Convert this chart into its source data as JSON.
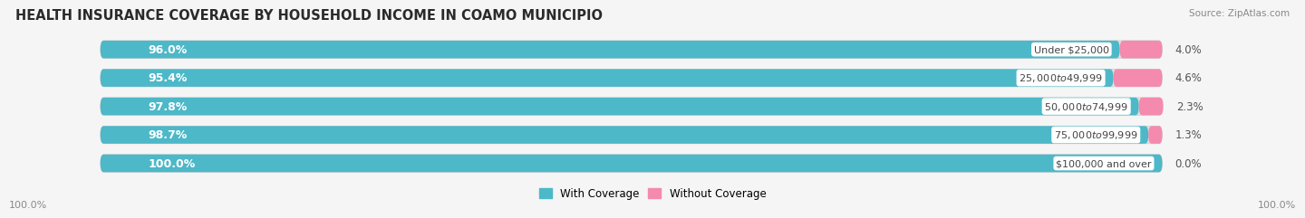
{
  "title": "HEALTH INSURANCE COVERAGE BY HOUSEHOLD INCOME IN COAMO MUNICIPIO",
  "source": "Source: ZipAtlas.com",
  "categories": [
    "Under $25,000",
    "$25,000 to $49,999",
    "$50,000 to $74,999",
    "$75,000 to $99,999",
    "$100,000 and over"
  ],
  "with_coverage": [
    96.0,
    95.4,
    97.8,
    98.7,
    100.0
  ],
  "without_coverage": [
    4.0,
    4.6,
    2.3,
    1.3,
    0.0
  ],
  "color_with": "#4db8c8",
  "color_without": "#f48aae",
  "background_color": "#f5f5f5",
  "bar_bg_color": "#e0e0e0",
  "title_fontsize": 10.5,
  "axis_label_left": "100.0%",
  "axis_label_right": "100.0%",
  "legend_with": "With Coverage",
  "legend_without": "Without Coverage"
}
